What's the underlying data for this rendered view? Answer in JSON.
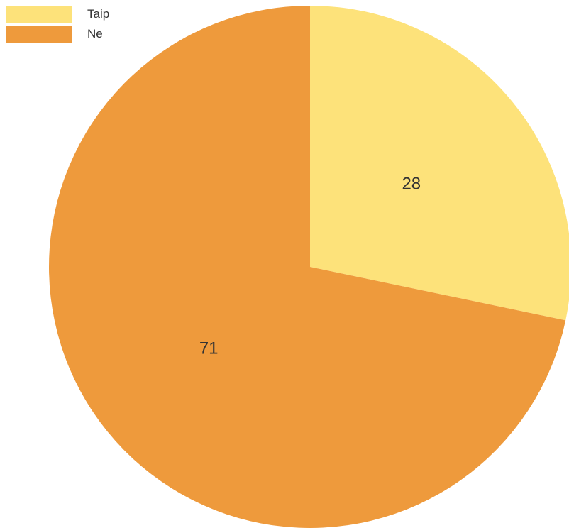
{
  "chart_data": {
    "type": "pie",
    "categories": [
      "Taip",
      "Ne"
    ],
    "values": [
      28,
      71
    ],
    "colors": [
      "#FDE27A",
      "#EE9A3C"
    ],
    "data_labels": [
      "28",
      "71"
    ],
    "legend_position": "top-left",
    "title": ""
  }
}
